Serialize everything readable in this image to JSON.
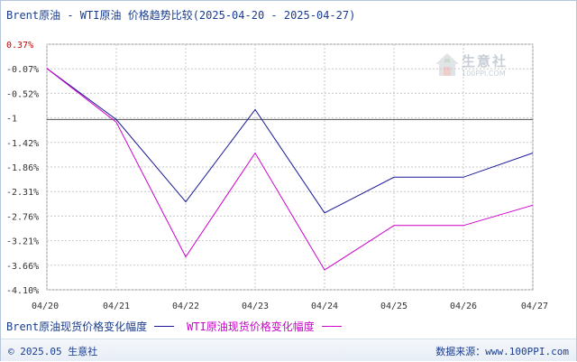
{
  "title": "Brent原油 - WTI原油 价格趋势比较(2025-04-20 - 2025-04-27)",
  "legend": [
    {
      "label": "Brent原油现货价格变化幅度",
      "color": "#1a1a99"
    },
    {
      "label": "WTI原油现货价格变化幅度",
      "color": "#cc00cc"
    }
  ],
  "footer": {
    "copyright": "© 2025.05 生意社",
    "source": "数据来源：www.100PPI.com"
  },
  "watermark": {
    "name": "生意社",
    "url": "100PPI.COM",
    "icon": "house-icon"
  },
  "colors": {
    "grid": "#c8c8c8",
    "baseline": "#555555",
    "axis_text": "#333333",
    "top_tick": "#cc0000"
  },
  "chart_data": {
    "type": "line",
    "x": [
      "04/20",
      "04/21",
      "04/22",
      "04/23",
      "04/24",
      "04/25",
      "04/26",
      "04/27"
    ],
    "y_ticks": [
      "0.37%",
      "-0.07%",
      "-0.52%",
      "-1",
      "-1.42%",
      "-1.86%",
      "-2.31%",
      "-2.76%",
      "-3.21%",
      "-3.66%",
      "-4.10%"
    ],
    "ylim": [
      -4.1,
      0.37
    ],
    "baseline": -1,
    "series": [
      {
        "name": "Brent原油现货价格变化幅度",
        "color": "#1a1a99",
        "values": [
          -0.07,
          -1.0,
          -2.5,
          -0.82,
          -2.7,
          -2.05,
          -2.05,
          -1.61
        ]
      },
      {
        "name": "WTI原油现货价格变化幅度",
        "color": "#cc00cc",
        "values": [
          -0.07,
          -1.05,
          -3.5,
          -1.61,
          -3.74,
          -2.93,
          -2.93,
          -2.56
        ]
      }
    ],
    "grid": true,
    "legend_position": "bottom-left"
  }
}
